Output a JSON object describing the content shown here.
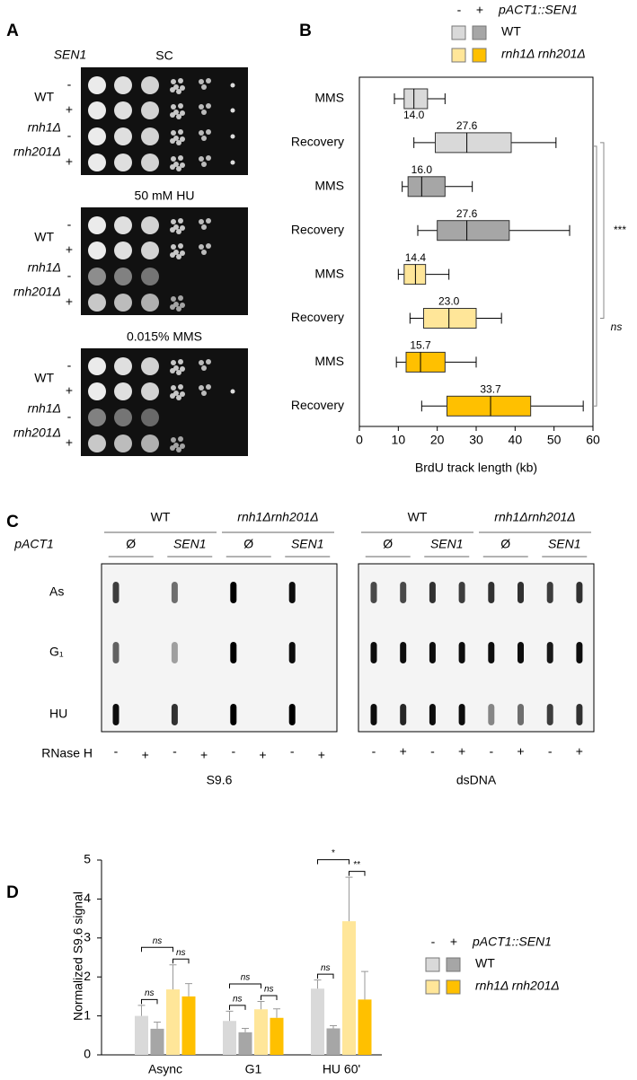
{
  "panel_labels": [
    "A",
    "B",
    "C",
    "D"
  ],
  "panel_a": {
    "gene_label": "SEN1",
    "conditions": [
      "SC",
      "50 mM HU",
      "0.015% MMS"
    ],
    "strain_labels": [
      "WT",
      "rnh1Δ",
      "rnh201Δ"
    ],
    "signs": [
      "-",
      "+"
    ]
  },
  "panel_c": {
    "groups": [
      "WT",
      "rnh1Δrnh201Δ"
    ],
    "promoter": "pACT1",
    "constructs": [
      "Ø",
      "SEN1"
    ],
    "rows": [
      "As",
      "G₁",
      "HU"
    ],
    "treatment": "RNase H",
    "signs": [
      "-",
      "+"
    ],
    "blots": [
      "S9.6",
      "dsDNA"
    ]
  },
  "chart_data": [
    {
      "type": "box",
      "orientation": "horizontal",
      "xlabel": "BrdU track length (kb)",
      "categories": [
        "MMS",
        "Recovery",
        "MMS",
        "Recovery",
        "MMS",
        "Recovery",
        "MMS",
        "Recovery"
      ],
      "min": [
        9,
        14,
        11,
        15,
        10,
        13,
        9.5,
        16
      ],
      "q1": [
        11.5,
        19.5,
        12.5,
        20,
        11.5,
        16.5,
        12,
        22.5
      ],
      "median": [
        14.0,
        27.6,
        16.0,
        27.6,
        14.4,
        23.0,
        15.7,
        33.7
      ],
      "value_labels": [
        "14.0",
        "27.6",
        "16.0",
        "27.6",
        "14.4",
        "23.0",
        "15.7",
        "33.7"
      ],
      "q3": [
        17.5,
        39,
        22,
        38.5,
        17,
        30,
        22,
        44
      ],
      "max": [
        22,
        50.5,
        29,
        54,
        23,
        36.5,
        30,
        57.5
      ],
      "colors": [
        "#d9d9d9",
        "#d9d9d9",
        "#a6a6a6",
        "#a6a6a6",
        "#ffe699",
        "#ffe699",
        "#ffc000",
        "#ffc000"
      ],
      "xlim": [
        0,
        60
      ],
      "xticks": [
        0,
        10,
        20,
        30,
        40,
        50,
        60
      ],
      "annotations": [
        "***",
        "ns"
      ],
      "legend": {
        "signs": [
          "-",
          "+"
        ],
        "title": "pACT1::SEN1",
        "entries": [
          "WT",
          "rnh1Δ rnh201Δ"
        ]
      }
    },
    {
      "type": "bar",
      "ylabel": "Normalized S9.6 signal",
      "categories": [
        "Async",
        "G1",
        "HU 60'"
      ],
      "series": [
        {
          "color": "#d9d9d9",
          "values": [
            1.0,
            0.87,
            1.7
          ],
          "errors": [
            0.27,
            0.25,
            0.22
          ]
        },
        {
          "color": "#a6a6a6",
          "values": [
            0.67,
            0.58,
            0.68
          ],
          "errors": [
            0.17,
            0.1,
            0.07
          ]
        },
        {
          "color": "#ffe699",
          "values": [
            1.68,
            1.17,
            3.43
          ],
          "errors": [
            0.63,
            0.2,
            1.13
          ]
        },
        {
          "color": "#ffc000",
          "values": [
            1.5,
            0.95,
            1.42
          ],
          "errors": [
            0.33,
            0.23,
            0.72
          ]
        }
      ],
      "ylim": [
        0,
        5
      ],
      "yticks": [
        0,
        1,
        2,
        3,
        4,
        5
      ],
      "significance": [
        [
          "ns",
          "ns",
          "ns"
        ],
        [
          "ns",
          "ns",
          "ns"
        ],
        [
          "ns",
          "**",
          "*"
        ]
      ],
      "legend": {
        "signs": [
          "-",
          "+"
        ],
        "title": "pACT1::SEN1",
        "entries": [
          "WT",
          "rnh1Δ rnh201Δ"
        ]
      }
    }
  ]
}
